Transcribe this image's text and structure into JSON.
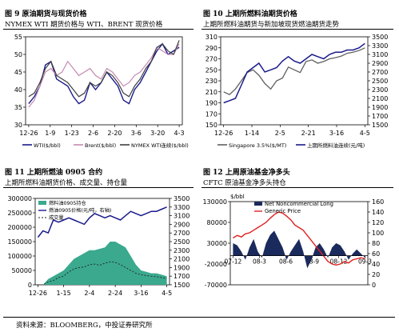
{
  "source": "资料来源：BLOOMBERG，中投证券研究所",
  "chart_data": [
    {
      "id": "fig9",
      "type": "line",
      "title": "图 9  原油期货与现货价格",
      "subtitle": "NYMEX WTI 期货价格与 WTI、BRENT 现货价格",
      "x_ticks": [
        "12-26",
        "1-9",
        "1-23",
        "2-6",
        "2-20",
        "3-6",
        "3-20",
        "4-3"
      ],
      "ylim": [
        30,
        55
      ],
      "y_ticks": [
        30,
        35,
        40,
        45,
        50,
        55
      ],
      "colors": {
        "WTI": "#1a1a8c",
        "Brent": "#c58ab0",
        "NYMEX": "#404040"
      },
      "legend": [
        "WTI($/bbl)",
        "Brent($/bbl)",
        "NYMEX WTI连续($/bbl)"
      ],
      "series": [
        {
          "key": "WTI",
          "values": [
            36,
            38,
            41,
            47,
            48,
            43,
            42,
            41,
            38,
            36,
            37,
            42,
            40,
            42,
            45,
            43,
            41,
            37,
            36,
            40,
            42,
            45,
            48,
            51,
            53,
            50,
            51,
            52
          ]
        },
        {
          "key": "Brent",
          "values": [
            35,
            37,
            41,
            45,
            46,
            44,
            45,
            48,
            46,
            44,
            45,
            46,
            44,
            43,
            46,
            45,
            43,
            41,
            42,
            44,
            45,
            47,
            49,
            52,
            51,
            50,
            50,
            53
          ]
        },
        {
          "key": "NYMEX",
          "values": [
            38,
            39,
            42,
            46,
            48,
            44,
            43,
            42,
            40,
            38,
            39,
            42,
            41,
            42,
            45,
            44,
            42,
            39,
            38,
            41,
            43,
            46,
            48,
            52,
            53,
            51,
            50,
            54
          ]
        }
      ]
    },
    {
      "id": "fig10",
      "type": "line",
      "title": "图 10  上期所燃料油期货价格",
      "subtitle": "上期所燃料油期货与新加坡现货燃油期货走势",
      "x_ticks": [
        "12-26",
        "1-14",
        "2-5",
        "2-21",
        "3-16",
        "4-5"
      ],
      "left_ylim": [
        150,
        310
      ],
      "left_ticks": [
        150,
        170,
        190,
        210,
        230,
        250,
        270,
        290,
        310
      ],
      "right_ylim": [
        1500,
        3500
      ],
      "right_ticks": [
        1500,
        1700,
        1900,
        2100,
        2300,
        2500,
        2700,
        2900,
        3100,
        3300,
        3500
      ],
      "colors": {
        "Singapore": "#606060",
        "SHFE": "#1a1a8c"
      },
      "legend": [
        "Singapore 3.5%($/MT)",
        "上期所燃料油连续(元/吨)"
      ],
      "series": [
        {
          "key": "Singapore",
          "axis": "left",
          "values": [
            210,
            205,
            215,
            230,
            245,
            250,
            240,
            225,
            215,
            230,
            235,
            255,
            250,
            245,
            265,
            268,
            262,
            265,
            270,
            272,
            275,
            280,
            282,
            285,
            290
          ]
        },
        {
          "key": "SHFE",
          "axis": "right",
          "values": [
            2000,
            2050,
            2100,
            2400,
            2700,
            2800,
            2900,
            2700,
            2750,
            2800,
            2950,
            3050,
            2950,
            2900,
            3000,
            3100,
            3050,
            3000,
            3100,
            3150,
            3150,
            3200,
            3200,
            3250,
            3350
          ]
        }
      ]
    },
    {
      "id": "fig11",
      "type": "area",
      "title": "图 11  上期所燃油 0905 合约",
      "subtitle": "上期所燃料油期货价格、成交量、持仓量",
      "x_ticks": [
        "12-26",
        "1-15",
        "2-4",
        "2-24",
        "3-16",
        "4-5"
      ],
      "left_ylim": [
        0,
        300000
      ],
      "left_ticks": [
        0,
        50000,
        100000,
        150000,
        200000,
        250000,
        300000
      ],
      "right_ylim": [
        1500,
        3500
      ],
      "right_ticks": [
        1500,
        1700,
        1900,
        2100,
        2300,
        2500,
        2700,
        2900,
        3100,
        3300,
        3500
      ],
      "colors": {
        "OI": "#3aa98e",
        "Price": "#1a1a8c",
        "Volume": "#222222"
      },
      "legend": [
        "燃料油0905持仓",
        "燃油0905价格(元/吨，右轴)",
        "成交量"
      ],
      "series": [
        {
          "key": "OI",
          "axis": "left",
          "values": [
            0,
            0,
            20000,
            30000,
            40000,
            50000,
            70000,
            90000,
            100000,
            110000,
            120000,
            120000,
            125000,
            130000,
            150000,
            150000,
            140000,
            130000,
            100000,
            70000,
            50000,
            45000,
            40000,
            40000,
            35000,
            30000
          ]
        },
        {
          "key": "Price",
          "axis": "right",
          "values": [
            2600,
            2750,
            2700,
            3000,
            2950,
            3000,
            3050,
            3000,
            2950,
            2900,
            3050,
            3150,
            3100,
            3050,
            3100,
            3050,
            3000,
            3100,
            3200,
            3150,
            3100,
            3150,
            3200,
            3200,
            3250,
            3300
          ]
        },
        {
          "key": "Volume",
          "axis": "left",
          "values": [
            0,
            0,
            10000,
            15000,
            25000,
            30000,
            45000,
            55000,
            60000,
            62000,
            70000,
            72000,
            68000,
            75000,
            80000,
            78000,
            70000,
            60000,
            50000,
            40000,
            35000,
            32000,
            30000,
            28000,
            25000,
            22000
          ]
        }
      ]
    },
    {
      "id": "fig12",
      "type": "area",
      "title": "图 12  上周原油基金净多头",
      "subtitle": "CFTC  原油基金净多头持仓",
      "left_unit": "$/bbl",
      "x_ticks": [
        "07-12",
        "08-3",
        "08-6",
        "08-9",
        "08-12",
        "09-3"
      ],
      "left_ylim": [
        -70000,
        130000
      ],
      "left_ticks": [
        -70000,
        -20000,
        30000,
        80000,
        130000
      ],
      "right_ylim": [
        0,
        160
      ],
      "right_ticks": [
        0,
        20,
        40,
        60,
        80,
        100,
        120,
        140,
        160
      ],
      "colors": {
        "NCL": "#1a2a5c",
        "Generic": "#e02020"
      },
      "legend": [
        "Net Noncommercial Long",
        "Generic Price"
      ],
      "series": [
        {
          "key": "NCL",
          "axis": "left",
          "values": [
            30000,
            25000,
            10000,
            -10000,
            20000,
            40000,
            10000,
            -5000,
            30000,
            50000,
            60000,
            40000,
            20000,
            -10000,
            10000,
            25000,
            40000,
            10000,
            -30000,
            -10000,
            20000,
            30000,
            15000,
            -5000,
            20000,
            30000,
            25000,
            10000,
            -10000,
            5000,
            15000,
            5000,
            -5000
          ]
        },
        {
          "key": "Generic",
          "axis": "right",
          "values": [
            90,
            95,
            92,
            98,
            100,
            105,
            110,
            115,
            120,
            128,
            135,
            140,
            138,
            132,
            125,
            115,
            110,
            105,
            95,
            85,
            75,
            65,
            55,
            45,
            40,
            38,
            40,
            45,
            42,
            48,
            50,
            52,
            50
          ]
        }
      ]
    }
  ]
}
